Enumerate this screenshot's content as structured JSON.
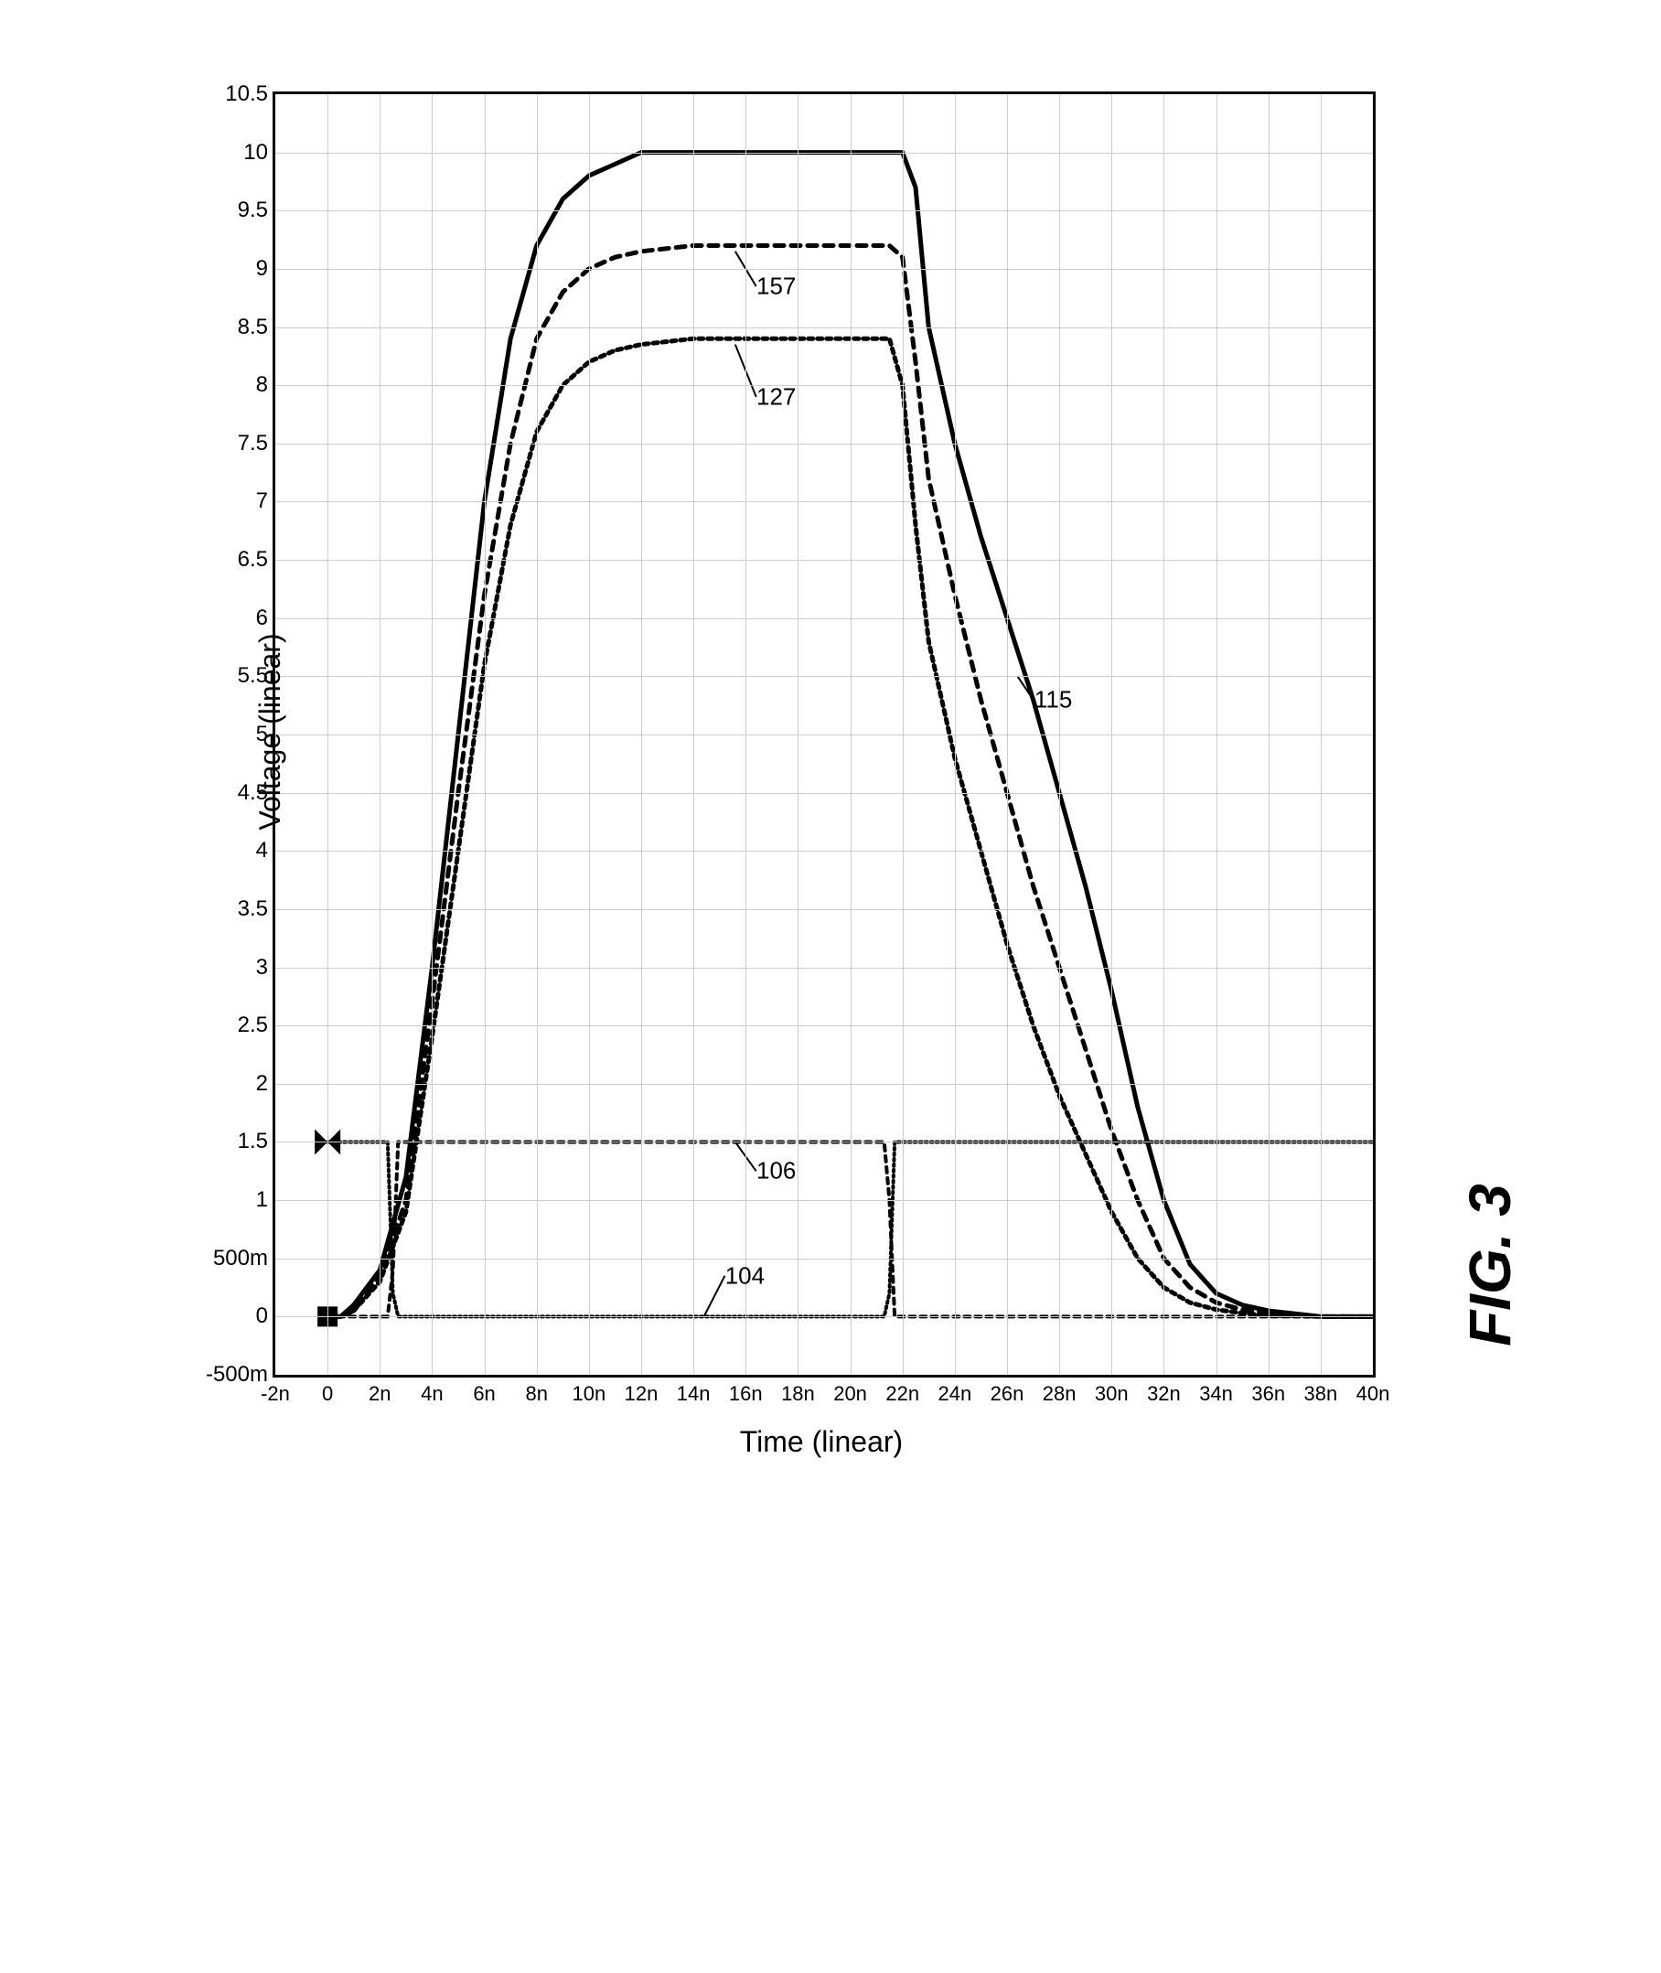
{
  "figure_label": "FIG. 3",
  "axes": {
    "xlabel": "Time (linear)",
    "ylabel": "Voltage (linear)",
    "xlim": [
      -2,
      40
    ],
    "ylim": [
      -0.5,
      10.5
    ],
    "xticks": [
      -2,
      0,
      2,
      4,
      6,
      8,
      10,
      12,
      14,
      16,
      18,
      20,
      22,
      24,
      26,
      28,
      30,
      32,
      34,
      36,
      38,
      40
    ],
    "xtick_labels": [
      "-2n",
      "0",
      "2n",
      "4n",
      "6n",
      "8n",
      "10n",
      "12n",
      "14n",
      "16n",
      "18n",
      "20n",
      "22n",
      "24n",
      "26n",
      "28n",
      "30n",
      "32n",
      "34n",
      "36n",
      "38n",
      "40n"
    ],
    "yticks": [
      -0.5,
      0,
      0.5,
      1,
      1.5,
      2,
      2.5,
      3,
      3.5,
      4,
      4.5,
      5,
      5.5,
      6,
      6.5,
      7,
      7.5,
      8,
      8.5,
      9,
      9.5,
      10,
      10.5
    ],
    "ytick_labels": [
      "-500m",
      "0",
      "500m",
      "1",
      "1.5",
      "2",
      "2.5",
      "3",
      "3.5",
      "4",
      "4.5",
      "5",
      "5.5",
      "6",
      "6.5",
      "7",
      "7.5",
      "8",
      "8.5",
      "9",
      "9.5",
      "10",
      "10.5"
    ],
    "grid_color": "#cccccc",
    "background_color": "#ffffff",
    "border_color": "#000000",
    "label_fontsize": 32,
    "tick_fontsize": 24
  },
  "series": [
    {
      "id": "115",
      "label": "115",
      "color": "#000000",
      "line_width": 5,
      "dash": "none",
      "label_pos": {
        "x": 27,
        "y": 5.3
      },
      "points": [
        [
          0,
          0
        ],
        [
          0.5,
          0
        ],
        [
          1,
          0.1
        ],
        [
          2,
          0.4
        ],
        [
          3,
          1.2
        ],
        [
          4,
          3
        ],
        [
          5,
          5
        ],
        [
          6,
          7
        ],
        [
          7,
          8.4
        ],
        [
          8,
          9.2
        ],
        [
          9,
          9.6
        ],
        [
          10,
          9.8
        ],
        [
          11,
          9.9
        ],
        [
          12,
          10
        ],
        [
          14,
          10
        ],
        [
          16,
          10
        ],
        [
          18,
          10
        ],
        [
          20,
          10
        ],
        [
          21,
          10
        ],
        [
          22,
          10
        ],
        [
          22.5,
          9.7
        ],
        [
          23,
          8.5
        ],
        [
          24,
          7.5
        ],
        [
          25,
          6.7
        ],
        [
          26,
          6.0
        ],
        [
          27,
          5.3
        ],
        [
          28,
          4.5
        ],
        [
          29,
          3.7
        ],
        [
          30,
          2.8
        ],
        [
          31,
          1.8
        ],
        [
          32,
          1.0
        ],
        [
          33,
          0.45
        ],
        [
          34,
          0.2
        ],
        [
          35,
          0.1
        ],
        [
          36,
          0.05
        ],
        [
          38,
          0
        ],
        [
          40,
          0
        ]
      ]
    },
    {
      "id": "157",
      "label": "157",
      "color": "#000000",
      "line_width": 5,
      "dash": "10,8",
      "label_pos": {
        "x": 16.4,
        "y": 8.85
      },
      "points": [
        [
          0,
          0
        ],
        [
          0.5,
          0
        ],
        [
          1,
          0.05
        ],
        [
          2,
          0.35
        ],
        [
          3,
          1.0
        ],
        [
          4,
          2.7
        ],
        [
          5,
          4.5
        ],
        [
          6,
          6.2
        ],
        [
          7,
          7.5
        ],
        [
          8,
          8.4
        ],
        [
          9,
          8.8
        ],
        [
          10,
          9.0
        ],
        [
          11,
          9.1
        ],
        [
          12,
          9.15
        ],
        [
          14,
          9.2
        ],
        [
          16,
          9.2
        ],
        [
          18,
          9.2
        ],
        [
          20,
          9.2
        ],
        [
          21,
          9.2
        ],
        [
          21.5,
          9.2
        ],
        [
          22,
          9.1
        ],
        [
          22.5,
          8.2
        ],
        [
          23,
          7.2
        ],
        [
          24,
          6.2
        ],
        [
          25,
          5.3
        ],
        [
          26,
          4.5
        ],
        [
          27,
          3.7
        ],
        [
          28,
          3.0
        ],
        [
          29,
          2.3
        ],
        [
          30,
          1.6
        ],
        [
          31,
          1.0
        ],
        [
          32,
          0.5
        ],
        [
          33,
          0.25
        ],
        [
          34,
          0.12
        ],
        [
          35,
          0.06
        ],
        [
          36,
          0.03
        ],
        [
          38,
          0
        ],
        [
          40,
          0
        ]
      ]
    },
    {
      "id": "127",
      "label": "127",
      "color": "#000000",
      "line_width": 5,
      "dash": "5,5",
      "label_pos": {
        "x": 16.4,
        "y": 7.9
      },
      "points": [
        [
          0,
          0
        ],
        [
          0.5,
          0
        ],
        [
          1,
          0.05
        ],
        [
          2,
          0.3
        ],
        [
          3,
          0.9
        ],
        [
          4,
          2.4
        ],
        [
          5,
          4.0
        ],
        [
          6,
          5.6
        ],
        [
          7,
          6.8
        ],
        [
          8,
          7.6
        ],
        [
          9,
          8.0
        ],
        [
          10,
          8.2
        ],
        [
          11,
          8.3
        ],
        [
          12,
          8.35
        ],
        [
          14,
          8.4
        ],
        [
          16,
          8.4
        ],
        [
          18,
          8.4
        ],
        [
          20,
          8.4
        ],
        [
          21,
          8.4
        ],
        [
          21.5,
          8.4
        ],
        [
          22,
          8.0
        ],
        [
          22.5,
          6.8
        ],
        [
          23,
          5.8
        ],
        [
          24,
          4.8
        ],
        [
          25,
          4.0
        ],
        [
          26,
          3.2
        ],
        [
          27,
          2.5
        ],
        [
          28,
          1.9
        ],
        [
          29,
          1.4
        ],
        [
          30,
          0.9
        ],
        [
          31,
          0.5
        ],
        [
          32,
          0.25
        ],
        [
          33,
          0.12
        ],
        [
          34,
          0.06
        ],
        [
          35,
          0.03
        ],
        [
          36,
          0.01
        ],
        [
          38,
          0
        ],
        [
          40,
          0
        ]
      ]
    },
    {
      "id": "106",
      "label": "106",
      "color": "#000000",
      "line_width": 4,
      "dash": "2,4",
      "label_pos": {
        "x": 16.4,
        "y": 1.25
      },
      "marker": "bowtie",
      "marker_pos": {
        "x": 0,
        "y": 1.5
      },
      "points": [
        [
          0,
          1.5
        ],
        [
          2,
          1.5
        ],
        [
          2.3,
          1.5
        ],
        [
          2.5,
          0.2
        ],
        [
          2.7,
          0
        ],
        [
          3,
          0
        ],
        [
          6,
          0
        ],
        [
          21,
          0
        ],
        [
          21.3,
          0
        ],
        [
          21.5,
          0.2
        ],
        [
          21.7,
          1.5
        ],
        [
          22,
          1.5
        ],
        [
          40,
          1.5
        ]
      ]
    },
    {
      "id": "104",
      "label": "104",
      "color": "#000000",
      "line_width": 4,
      "dash": "6,6",
      "label_pos": {
        "x": 15.2,
        "y": 0.35
      },
      "marker": "square",
      "marker_pos": {
        "x": 0,
        "y": 0
      },
      "points": [
        [
          0,
          0
        ],
        [
          2,
          0
        ],
        [
          2.3,
          0
        ],
        [
          2.5,
          0.4
        ],
        [
          2.7,
          1.5
        ],
        [
          3,
          1.5
        ],
        [
          6,
          1.5
        ],
        [
          21,
          1.5
        ],
        [
          21.3,
          1.5
        ],
        [
          21.5,
          1.0
        ],
        [
          21.7,
          0
        ],
        [
          22,
          0
        ],
        [
          40,
          0
        ]
      ]
    }
  ],
  "series_label_leaders": [
    {
      "for": "115",
      "from": {
        "x": 26.4,
        "y": 5.5
      },
      "to": {
        "x": 27,
        "y": 5.3
      }
    },
    {
      "for": "157",
      "from": {
        "x": 15.6,
        "y": 9.15
      },
      "to": {
        "x": 16.4,
        "y": 8.85
      }
    },
    {
      "for": "127",
      "from": {
        "x": 15.6,
        "y": 8.35
      },
      "to": {
        "x": 16.4,
        "y": 7.9
      }
    },
    {
      "for": "106",
      "from": {
        "x": 15.6,
        "y": 1.5
      },
      "to": {
        "x": 16.4,
        "y": 1.25
      }
    },
    {
      "for": "104",
      "from": {
        "x": 14.4,
        "y": 0
      },
      "to": {
        "x": 15.2,
        "y": 0.35
      }
    }
  ]
}
